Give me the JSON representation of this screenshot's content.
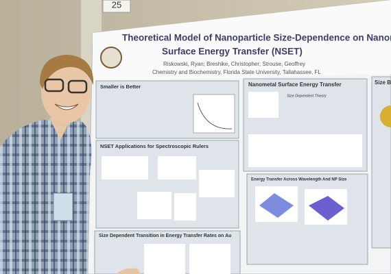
{
  "board_number": "25",
  "poster": {
    "title_line1": "Theoretical Model of Nanoparticle Size-Dependence on Nanomet",
    "title_line2": "Surface Energy Transfer (NSET)",
    "authors": "Riskowski, Ryan; Breshike, Christopher; Strouse, Geoffrey",
    "affiliation": "Chemistry and Biochemistry, Florida State University, Tallahassee, FL",
    "sections": [
      {
        "heading": "Smaller is Better"
      },
      {
        "heading": "NSET Applications for Spectroscopic Rulers"
      },
      {
        "heading": "Size Dependent Transition in Energy Transfer Rates on Au"
      },
      {
        "heading": "Nanometal Surface Energy Transfer"
      },
      {
        "heading": "Size Dependent Theory"
      },
      {
        "heading": "Energy Transfer Across Wavelength And NP Size"
      },
      {
        "heading": "Size B"
      }
    ]
  }
}
